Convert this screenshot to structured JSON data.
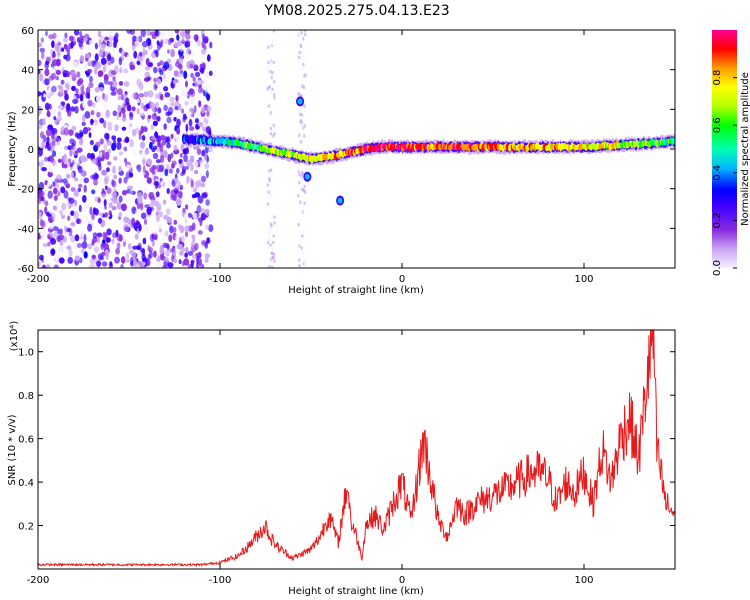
{
  "title": "YM08.2025.275.04.13.E23",
  "colors": {
    "snr_line": "#e8191b",
    "axes": "#000000",
    "colormap": [
      "#f4f0ff",
      "#c9a4f4",
      "#8a2be2",
      "#3f00ff",
      "#0000ff",
      "#00b7ff",
      "#00ffb0",
      "#00ff00",
      "#b6ff00",
      "#ffff00",
      "#ff9a00",
      "#ff0000",
      "#ff0090"
    ]
  },
  "chart_data": [
    {
      "type": "heatmap",
      "xlabel": "Height of straight line (km)",
      "ylabel": "Frequency (Hz)",
      "xlim": [
        -200,
        150
      ],
      "ylim": [
        -60,
        60
      ],
      "xticks": [
        -200,
        -100,
        0,
        100
      ],
      "yticks": [
        60,
        40,
        20,
        0,
        -20,
        -40,
        -60
      ],
      "noise_region_x": [
        -200,
        -105
      ],
      "sparse_stripes_x": [
        -72,
        -55
      ],
      "ridge": {
        "x": [
          -120,
          -100,
          -90,
          -80,
          -70,
          -60,
          -50,
          -40,
          -30,
          -20,
          -10,
          0,
          10,
          20,
          40,
          60,
          80,
          100,
          120,
          140,
          150
        ],
        "freq": [
          5,
          4,
          3,
          1,
          -1,
          -3,
          -5,
          -4,
          -2,
          0,
          1,
          1,
          1,
          1,
          1,
          1,
          1,
          1,
          2,
          3,
          4
        ],
        "amp": [
          0.3,
          0.45,
          0.55,
          0.6,
          0.65,
          0.7,
          0.75,
          0.8,
          0.85,
          0.9,
          0.95,
          0.95,
          0.9,
          0.9,
          0.85,
          0.85,
          0.8,
          0.75,
          0.7,
          0.6,
          0.55
        ]
      },
      "outliers": [
        {
          "x": -52,
          "freq": -14
        },
        {
          "x": -34,
          "freq": -26
        },
        {
          "x": -56,
          "freq": 24
        }
      ],
      "colorbar": {
        "label": "Normalized spectral amplitude",
        "range": [
          0.0,
          1.0
        ],
        "ticks": [
          0.0,
          0.2,
          0.4,
          0.6,
          0.8
        ]
      }
    },
    {
      "type": "line",
      "xlabel": "Height of straight line (km)",
      "ylabel": "SNR (10 * v/v)",
      "exponent_label": "(x10⁴)",
      "xlim": [
        -200,
        150
      ],
      "ylim": [
        0,
        1.1
      ],
      "xticks": [
        -200,
        -100,
        0,
        100
      ],
      "yticks": [
        0.2,
        0.4,
        0.6,
        0.8,
        1.0
      ],
      "series": [
        {
          "name": "SNR",
          "x": [
            -200,
            -110,
            -100,
            -90,
            -85,
            -80,
            -75,
            -72,
            -68,
            -60,
            -55,
            -50,
            -45,
            -40,
            -35,
            -30,
            -28,
            -25,
            -22,
            -20,
            -15,
            -10,
            -5,
            0,
            5,
            10,
            12,
            15,
            20,
            25,
            30,
            35,
            40,
            50,
            60,
            70,
            75,
            80,
            85,
            90,
            95,
            100,
            105,
            110,
            115,
            120,
            125,
            130,
            135,
            138,
            140,
            145,
            150
          ],
          "y": [
            0.02,
            0.02,
            0.03,
            0.06,
            0.1,
            0.15,
            0.2,
            0.14,
            0.1,
            0.05,
            0.07,
            0.09,
            0.15,
            0.25,
            0.12,
            0.4,
            0.22,
            0.15,
            0.05,
            0.2,
            0.25,
            0.18,
            0.3,
            0.4,
            0.22,
            0.5,
            0.6,
            0.45,
            0.22,
            0.15,
            0.3,
            0.25,
            0.3,
            0.34,
            0.38,
            0.44,
            0.45,
            0.42,
            0.3,
            0.4,
            0.35,
            0.45,
            0.3,
            0.55,
            0.4,
            0.6,
            0.7,
            0.5,
            0.9,
            1.08,
            0.55,
            0.3,
            0.25
          ]
        }
      ]
    }
  ]
}
